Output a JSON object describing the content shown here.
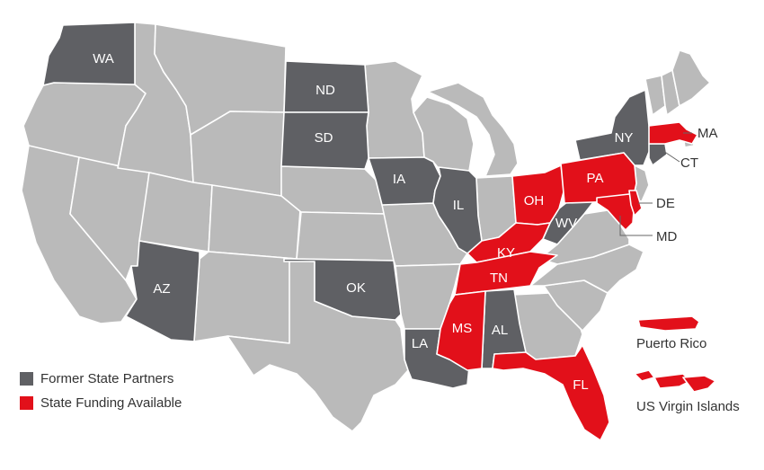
{
  "colors": {
    "background": "#ffffff",
    "other_state": "#bababa",
    "former_partner": "#5f6064",
    "funding_available": "#e2101a",
    "label_on_state": "#ffffff",
    "label_outside": "#333333"
  },
  "legend": {
    "former_label": "Former State Partners",
    "funding_label": "State Funding Available"
  },
  "states": {
    "former_partners": [
      "WA",
      "ND",
      "SD",
      "IA",
      "IL",
      "AZ",
      "OK",
      "LA",
      "AL",
      "NY",
      "WV",
      "CT"
    ],
    "funding_available": [
      "OH",
      "PA",
      "KY",
      "TN",
      "MS",
      "FL",
      "MD",
      "DE",
      "MA",
      "Puerto Rico",
      "US Virgin Islands"
    ]
  },
  "labels": {
    "wa": "WA",
    "nd": "ND",
    "sd": "SD",
    "ia": "IA",
    "il": "IL",
    "az": "AZ",
    "ok": "OK",
    "la": "LA",
    "al": "AL",
    "ny": "NY",
    "wv": "WV",
    "oh": "OH",
    "pa": "PA",
    "ky": "KY",
    "tn": "TN",
    "ms": "MS",
    "fl": "FL",
    "ma": "MA",
    "ct": "CT",
    "de": "DE",
    "md": "MD"
  },
  "territories": {
    "puerto_rico": "Puerto Rico",
    "usvi": "US Virgin Islands"
  }
}
